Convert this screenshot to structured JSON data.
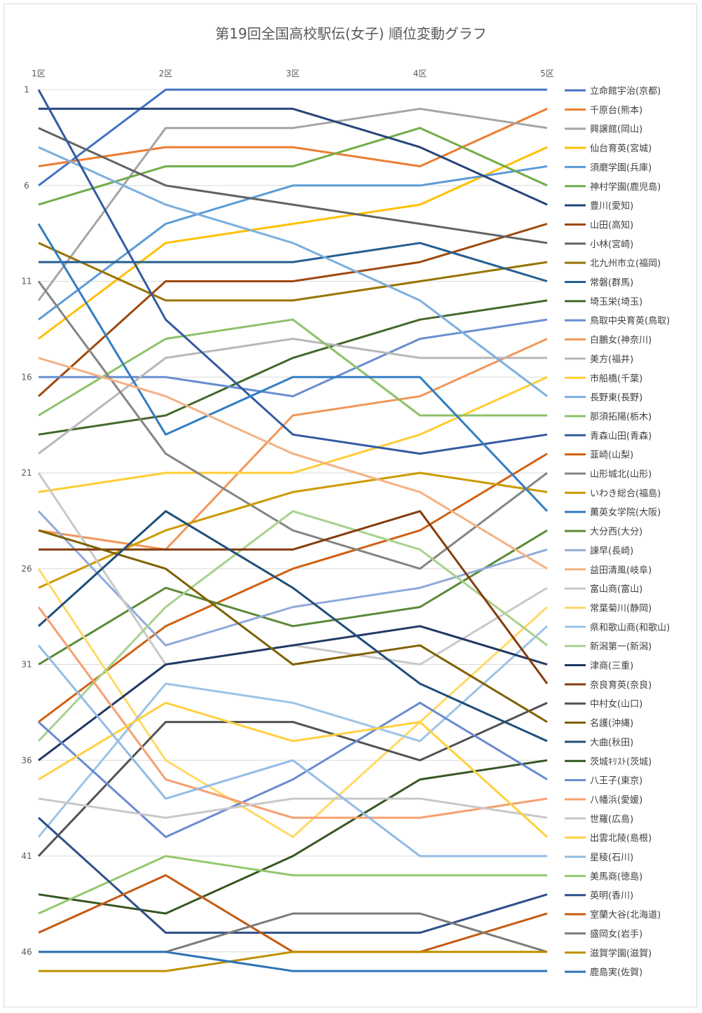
{
  "chart_data": {
    "type": "line",
    "title": "第19回全国高校駅伝(女子) 順位変動グラフ",
    "categories": [
      "1区",
      "2区",
      "3区",
      "4区",
      "5区"
    ],
    "y_ticks": [
      "1",
      "6",
      "11",
      "16",
      "21",
      "26",
      "31",
      "36",
      "41",
      "46"
    ],
    "ylim": [
      1,
      47
    ],
    "y_inverted": true,
    "grid": true,
    "legend_position": "right",
    "series": [
      {
        "name": "立命館宇治(京都)",
        "color": "#4472C4",
        "values": [
          6,
          1,
          1,
          1,
          1
        ]
      },
      {
        "name": "千原台(熊本)",
        "color": "#ED7D31",
        "values": [
          5,
          4,
          4,
          5,
          2
        ]
      },
      {
        "name": "興譲館(岡山)",
        "color": "#A5A5A5",
        "values": [
          12,
          3,
          3,
          2,
          3
        ]
      },
      {
        "name": "仙台育英(宮城)",
        "color": "#FFC000",
        "values": [
          14,
          9,
          8,
          7,
          4
        ]
      },
      {
        "name": "須磨学園(兵庫)",
        "color": "#5B9BD5",
        "values": [
          13,
          8,
          6,
          6,
          5
        ]
      },
      {
        "name": "神村学園(鹿児島)",
        "color": "#70AD47",
        "values": [
          7,
          5,
          5,
          3,
          6
        ]
      },
      {
        "name": "豊川(愛知)",
        "color": "#264478",
        "values": [
          2,
          2,
          2,
          4,
          7
        ]
      },
      {
        "name": "山田(高知)",
        "color": "#9E480E",
        "values": [
          17,
          11,
          11,
          10,
          8
        ]
      },
      {
        "name": "小林(宮崎)",
        "color": "#636363",
        "values": [
          3,
          6,
          7,
          8,
          9
        ]
      },
      {
        "name": "北九州市立(福岡)",
        "color": "#997300",
        "values": [
          9,
          12,
          12,
          11,
          10
        ]
      },
      {
        "name": "常磐(群馬)",
        "color": "#255E91",
        "values": [
          10,
          10,
          10,
          9,
          11
        ]
      },
      {
        "name": "埼玉栄(埼玉)",
        "color": "#43682B",
        "values": [
          19,
          18,
          15,
          13,
          12
        ]
      },
      {
        "name": "鳥取中央育英(鳥取)",
        "color": "#698ED0",
        "values": [
          16,
          16,
          17,
          14,
          13
        ]
      },
      {
        "name": "白鵬女(神奈川)",
        "color": "#F1975A",
        "values": [
          24,
          25,
          18,
          17,
          14
        ]
      },
      {
        "name": "美方(福井)",
        "color": "#B7B7B7",
        "values": [
          20,
          15,
          14,
          15,
          15
        ]
      },
      {
        "name": "市船橋(千葉)",
        "color": "#FFCD33",
        "values": [
          22,
          21,
          21,
          19,
          16
        ]
      },
      {
        "name": "長野東(長野)",
        "color": "#7CAFDD",
        "values": [
          4,
          7,
          9,
          12,
          17
        ]
      },
      {
        "name": "那須拓陽(栃木)",
        "color": "#8CC168",
        "values": [
          18,
          14,
          13,
          18,
          18
        ]
      },
      {
        "name": "青森山田(青森)",
        "color": "#335AA1",
        "values": [
          1,
          13,
          19,
          20,
          19
        ]
      },
      {
        "name": "韮崎(山梨)",
        "color": "#D26012",
        "values": [
          34,
          29,
          26,
          24,
          20
        ]
      },
      {
        "name": "山形城北(山形)",
        "color": "#848484",
        "values": [
          11,
          20,
          24,
          26,
          21
        ]
      },
      {
        "name": "いわき総合(福島)",
        "color": "#CC9A00",
        "values": [
          27,
          24,
          22,
          21,
          22
        ]
      },
      {
        "name": "薫英女学院(大阪)",
        "color": "#327DC2",
        "values": [
          8,
          19,
          16,
          16,
          23
        ]
      },
      {
        "name": "大分西(大分)",
        "color": "#5A8A39",
        "values": [
          31,
          27,
          29,
          28,
          24
        ]
      },
      {
        "name": "諫早(長崎)",
        "color": "#8FAADC",
        "values": [
          23,
          30,
          28,
          27,
          25
        ]
      },
      {
        "name": "益田清風(岐阜)",
        "color": "#F4B183",
        "values": [
          15,
          17,
          20,
          22,
          26
        ]
      },
      {
        "name": "富山商(富山)",
        "color": "#C9C9C9",
        "values": [
          21,
          31,
          30,
          31,
          27
        ]
      },
      {
        "name": "常葉菊川(静岡)",
        "color": "#FFD966",
        "values": [
          26,
          36,
          40,
          34,
          28
        ]
      },
      {
        "name": "県和歌山商(和歌山)",
        "color": "#9DC3E6",
        "values": [
          40,
          32,
          33,
          35,
          29
        ]
      },
      {
        "name": "新潟第一(新潟)",
        "color": "#A9D18E",
        "values": [
          35,
          28,
          23,
          25,
          30
        ]
      },
      {
        "name": "津商(三重)",
        "color": "#1F3864",
        "values": [
          36,
          31,
          30,
          29,
          31
        ]
      },
      {
        "name": "奈良育英(奈良)",
        "color": "#843C0C",
        "values": [
          25,
          25,
          25,
          23,
          32
        ]
      },
      {
        "name": "中村女(山口)",
        "color": "#525252",
        "values": [
          41,
          34,
          34,
          36,
          33
        ]
      },
      {
        "name": "名護(沖縄)",
        "color": "#7F6000",
        "values": [
          24,
          26,
          31,
          30,
          34
        ]
      },
      {
        "name": "大曲(秋田)",
        "color": "#1F4E79",
        "values": [
          29,
          23,
          27,
          32,
          35
        ]
      },
      {
        "name": "茨城ｷﾘｽﾄ(茨城)",
        "color": "#375623",
        "values": [
          43,
          44,
          41,
          37,
          36
        ]
      },
      {
        "name": "八王子(東京)",
        "color": "#6A8AD0",
        "values": [
          34,
          40,
          37,
          33,
          37
        ]
      },
      {
        "name": "八幡浜(愛媛)",
        "color": "#F4A070",
        "values": [
          28,
          37,
          39,
          39,
          38
        ]
      },
      {
        "name": "世羅(広島)",
        "color": "#C8C8C8",
        "values": [
          38,
          39,
          38,
          38,
          39
        ]
      },
      {
        "name": "出雲北陵(島根)",
        "color": "#FFD040",
        "values": [
          37,
          33,
          35,
          34,
          40
        ]
      },
      {
        "name": "星稜(石川)",
        "color": "#92BCE6",
        "values": [
          30,
          38,
          36,
          41,
          41
        ]
      },
      {
        "name": "美馬商(徳島)",
        "color": "#92C86E",
        "values": [
          44,
          41,
          42,
          42,
          42
        ]
      },
      {
        "name": "英明(香川)",
        "color": "#2F4F8A",
        "values": [
          39,
          45,
          45,
          45,
          43
        ]
      },
      {
        "name": "室蘭大谷(北海道)",
        "color": "#C55A11",
        "values": [
          45,
          42,
          46,
          46,
          44
        ]
      },
      {
        "name": "盛岡女(岩手)",
        "color": "#7B7B7B",
        "values": [
          46,
          46,
          44,
          44,
          46
        ]
      },
      {
        "name": "滋賀学園(滋賀)",
        "color": "#BF9000",
        "values": [
          47,
          47,
          46,
          46,
          46
        ]
      },
      {
        "name": "鹿島実(佐賀)",
        "color": "#2E75B6",
        "values": [
          46,
          46,
          47,
          47,
          47
        ]
      }
    ]
  }
}
